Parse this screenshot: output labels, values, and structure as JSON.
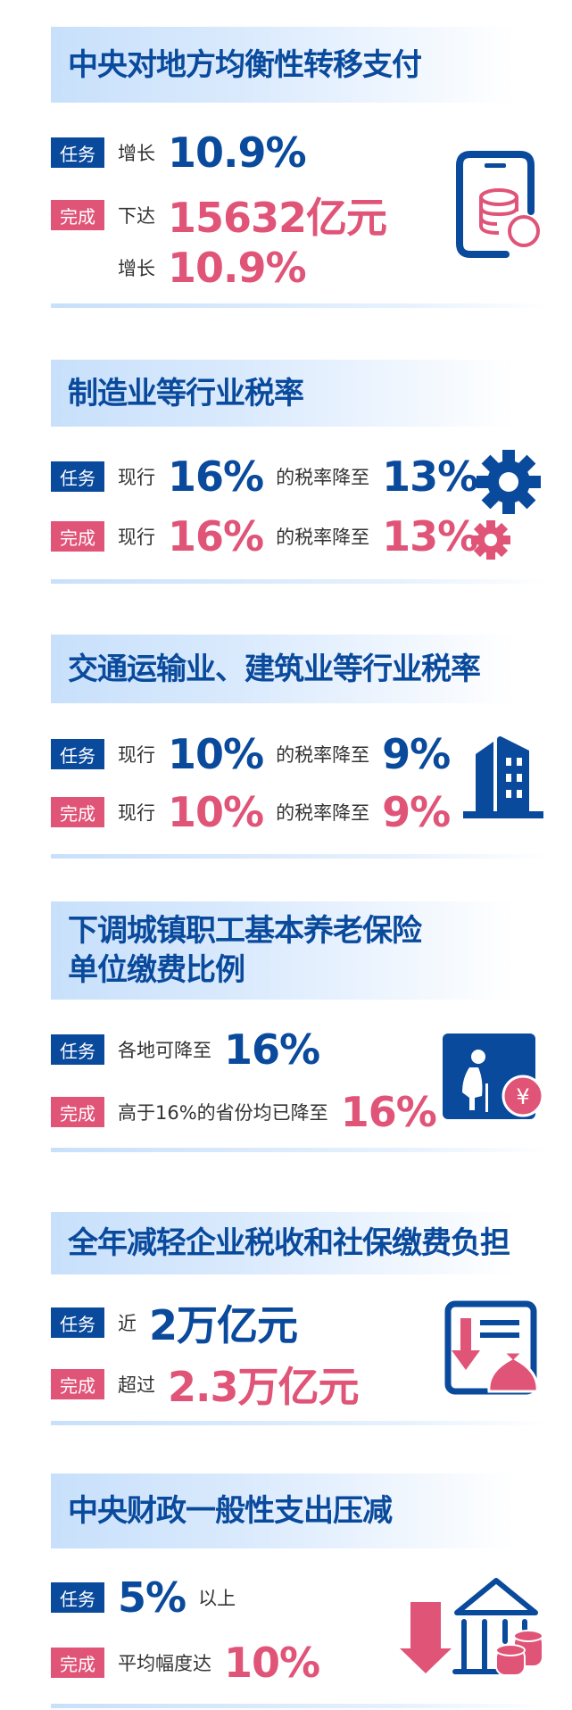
{
  "colors": {
    "task": "#0a4a9c",
    "done": "#e05478"
  },
  "sections": [
    {
      "title": "中央对地方均衡性转移支付",
      "icon": "phone-coins-icon",
      "task": {
        "badge": "任务",
        "label": "增长",
        "value": "10.9%"
      },
      "done": {
        "badge": "完成",
        "label": "下达",
        "value": "15632亿元",
        "label2": "增长",
        "value2": "10.9%"
      }
    },
    {
      "title": "制造业等行业税率",
      "icon": "gears-icon",
      "task": {
        "badge": "任务",
        "label": "现行",
        "value": "16%",
        "mid": "的税率降至",
        "value2": "13%"
      },
      "done": {
        "badge": "完成",
        "label": "现行",
        "value": "16%",
        "mid": "的税率降至",
        "value2": "13%"
      }
    },
    {
      "title": "交通运输业、建筑业等行业税率",
      "icon": "building-icon",
      "task": {
        "badge": "任务",
        "label": "现行",
        "value": "10%",
        "mid": "的税率降至",
        "value2": "9%"
      },
      "done": {
        "badge": "完成",
        "label": "现行",
        "value": "10%",
        "mid": "的税率降至",
        "value2": "9%"
      }
    },
    {
      "title": "下调城镇职工基本养老保险",
      "title2": "单位缴费比例",
      "icon": "elderly-yuan-icon",
      "task": {
        "badge": "任务",
        "label": "各地可降至",
        "value": "16%"
      },
      "done": {
        "badge": "完成",
        "label": "高于16%的省份均已降至",
        "value": "16%"
      }
    },
    {
      "title": "全年减轻企业税收和社保缴费负担",
      "icon": "document-moneybag-icon",
      "task": {
        "badge": "任务",
        "label": "近",
        "value": "2万亿元"
      },
      "done": {
        "badge": "完成",
        "label": "超过",
        "value": "2.3万亿元"
      }
    },
    {
      "title": "中央财政一般性支出压减",
      "icon": "bank-down-arrow-icon",
      "task": {
        "badge": "任务",
        "value": "5%",
        "after": "以上"
      },
      "done": {
        "badge": "完成",
        "label": "平均幅度达",
        "value": "10%"
      }
    }
  ]
}
